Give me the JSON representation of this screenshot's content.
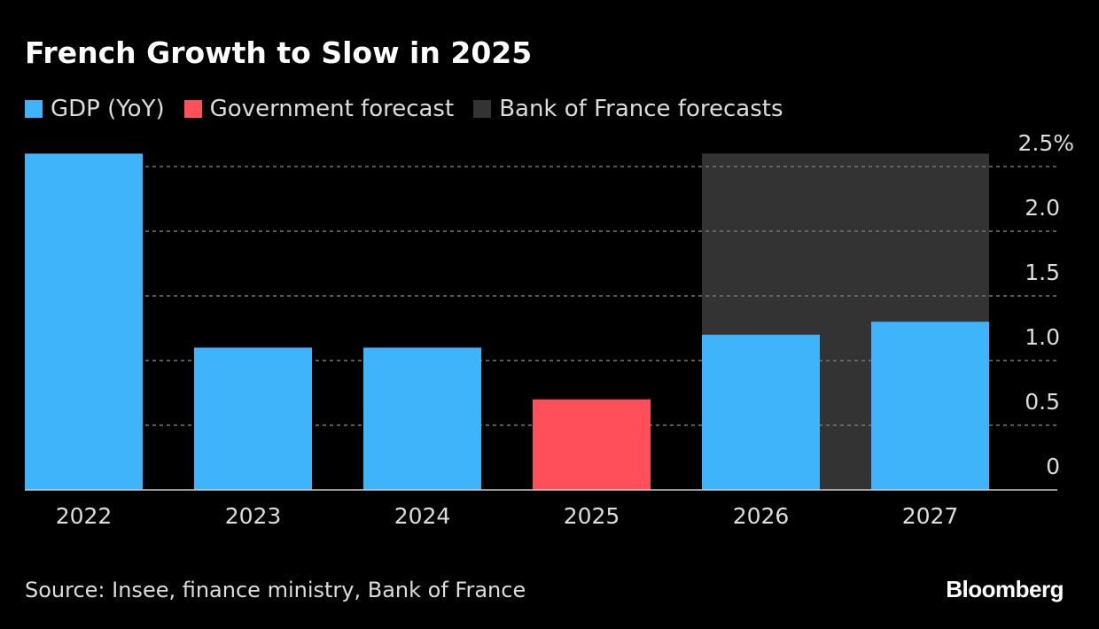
{
  "title": "French Growth to Slow in 2025",
  "legend": [
    {
      "label": "GDP (YoY)",
      "color": "#40b4fa"
    },
    {
      "label": "Government forecast",
      "color": "#ff4f5a"
    },
    {
      "label": "Bank of France forecasts",
      "color": "#333333"
    }
  ],
  "source": "Source: Insee, finance ministry, Bank of France",
  "logo": "Bloomberg",
  "chart_data": {
    "type": "bar",
    "title": "French Growth to Slow in 2025",
    "categories": [
      "2022",
      "2023",
      "2024",
      "2025",
      "2026",
      "2027"
    ],
    "values": [
      2.6,
      1.1,
      1.1,
      0.7,
      1.2,
      1.3
    ],
    "series_type": [
      "GDP (YoY)",
      "GDP (YoY)",
      "GDP (YoY)",
      "Government forecast",
      "GDP (YoY)",
      "GDP (YoY)"
    ],
    "shaded_region": {
      "label": "Bank of France forecasts",
      "from": "2026",
      "to": "2027",
      "color": "#333333"
    },
    "yticks": [
      0,
      0.5,
      1.0,
      1.5,
      2.0,
      2.5
    ],
    "ytick_labels": [
      "0",
      "0.5",
      "1.0",
      "1.5",
      "2.0",
      "2.5%"
    ],
    "ylim": [
      0,
      2.6
    ],
    "grid": true,
    "y_axis_position": "right",
    "legend_position": "top-left",
    "bar_colors": {
      "GDP (YoY)": "#40b4fa",
      "Government forecast": "#ff4f5a"
    }
  }
}
